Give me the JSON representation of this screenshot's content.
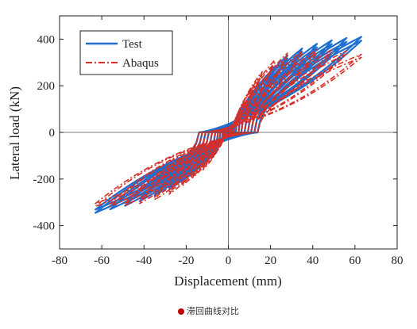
{
  "chart_data": {
    "type": "line",
    "title": "",
    "xlabel": "Displacement (mm)",
    "ylabel": "Lateral load (kN)",
    "xlim": [
      -80,
      80
    ],
    "ylim": [
      -500,
      500
    ],
    "xticks": [
      -80,
      -60,
      -40,
      -20,
      0,
      20,
      40,
      60,
      80
    ],
    "yticks": [
      -400,
      -200,
      0,
      200,
      400
    ],
    "grid": false,
    "legend_position": "top-left",
    "series": [
      {
        "name": "Test",
        "color": "#1f6fd1",
        "style": "solid",
        "loops": [
          {
            "dmax": 5,
            "fpos": 55,
            "dmin": -5,
            "fneg": -50
          },
          {
            "dmax": 8,
            "fpos": 110,
            "dmin": -8,
            "fneg": -90
          },
          {
            "dmax": 12,
            "fpos": 170,
            "dmin": -12,
            "fneg": -140
          },
          {
            "dmax": 16,
            "fpos": 220,
            "dmin": -17,
            "fneg": -175
          },
          {
            "dmax": 22,
            "fpos": 280,
            "dmin": -22,
            "fneg": -210
          },
          {
            "dmax": 28,
            "fpos": 330,
            "dmin": -28,
            "fneg": -245
          },
          {
            "dmax": 35,
            "fpos": 360,
            "dmin": -35,
            "fneg": -270
          },
          {
            "dmax": 42,
            "fpos": 380,
            "dmin": -42,
            "fneg": -295
          },
          {
            "dmax": 49,
            "fpos": 395,
            "dmin": -49,
            "fneg": -315
          },
          {
            "dmax": 56,
            "fpos": 405,
            "dmin": -56,
            "fneg": -330
          },
          {
            "dmax": 63,
            "fpos": 410,
            "dmin": -63,
            "fneg": -345
          }
        ]
      },
      {
        "name": "Abaqus",
        "color": "#d6302a",
        "style": "dash-dot",
        "loops": [
          {
            "dmax": 5,
            "fpos": 70,
            "dmin": -5,
            "fneg": -65
          },
          {
            "dmax": 8,
            "fpos": 130,
            "dmin": -8,
            "fneg": -110
          },
          {
            "dmax": 12,
            "fpos": 200,
            "dmin": -12,
            "fneg": -160
          },
          {
            "dmax": 16,
            "fpos": 260,
            "dmin": -17,
            "fneg": -195
          },
          {
            "dmax": 22,
            "fpos": 310,
            "dmin": -22,
            "fneg": -230
          },
          {
            "dmax": 28,
            "fpos": 340,
            "dmin": -28,
            "fneg": -265
          },
          {
            "dmax": 35,
            "fpos": 350,
            "dmin": -35,
            "fneg": -290
          },
          {
            "dmax": 42,
            "fpos": 355,
            "dmin": -42,
            "fneg": -305
          },
          {
            "dmax": 49,
            "fpos": 355,
            "dmin": -49,
            "fneg": -315
          },
          {
            "dmax": 56,
            "fpos": 350,
            "dmin": -56,
            "fneg": -318
          },
          {
            "dmax": 63,
            "fpos": 335,
            "dmin": -63,
            "fneg": -318
          }
        ]
      }
    ]
  },
  "caption": "滞回曲线对比"
}
